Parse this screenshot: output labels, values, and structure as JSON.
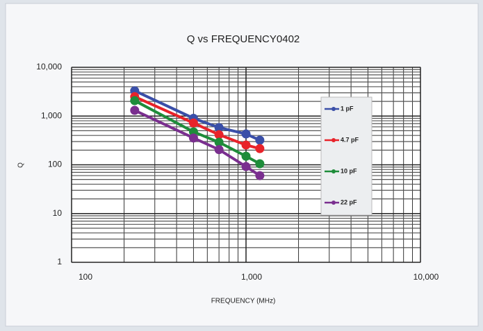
{
  "chart_data": {
    "type": "line",
    "title": "Q vs FREQUENCY0402",
    "x_label": "FREQUENCY (MHz)",
    "y_label": "Q",
    "x": [
      230,
      500,
      700,
      1000,
      1200
    ],
    "series": [
      {
        "name": "1 pF",
        "color": "#3a4fa8",
        "values": [
          3300,
          900,
          580,
          430,
          320
        ]
      },
      {
        "name": "4.7 pF",
        "color": "#e8232a",
        "values": [
          2500,
          720,
          415,
          255,
          215
        ]
      },
      {
        "name": "10 pF",
        "color": "#1e8c3a",
        "values": [
          2070,
          475,
          290,
          150,
          105
        ]
      },
      {
        "name": "22 pF",
        "color": "#7a2f8f",
        "values": [
          1310,
          355,
          205,
          92,
          60
        ]
      }
    ],
    "x_log": true,
    "y_log": true,
    "xlim": [
      100,
      10000
    ],
    "xticks": [
      100,
      {
        "value": 1000,
        "label": "1,000"
      },
      {
        "value": 10000,
        "label": "10,000"
      }
    ],
    "ylim": [
      1,
      10000
    ],
    "yticks": [
      1,
      10,
      100,
      {
        "value": 1000,
        "label": "1,000"
      },
      {
        "value": 10000,
        "label": "10,000"
      }
    ],
    "grid": true,
    "legend": "right"
  }
}
